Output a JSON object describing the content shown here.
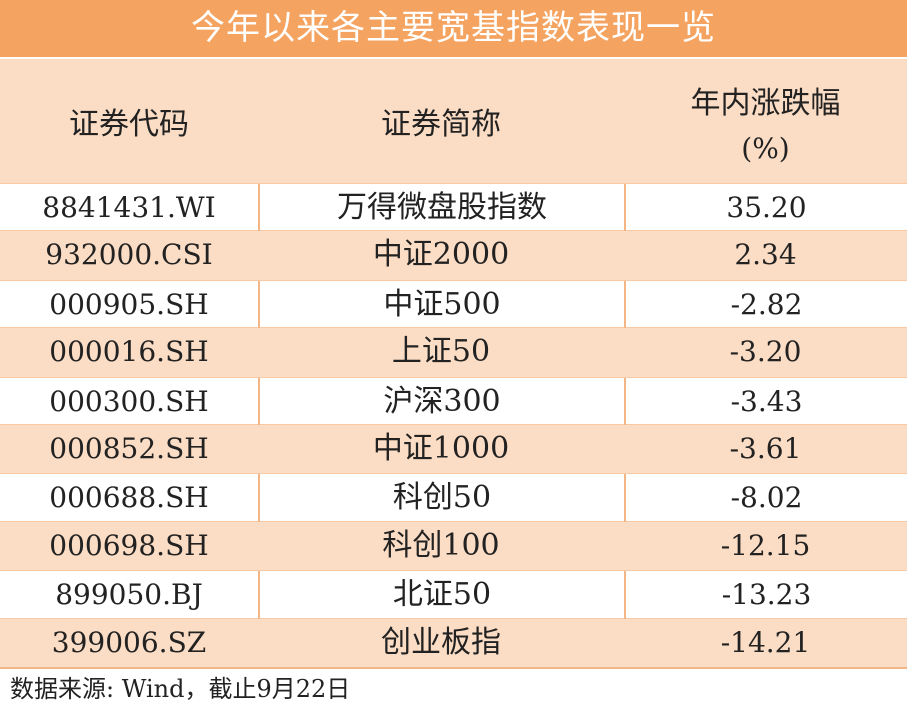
{
  "title": "今年以来各主要宽基指数表现一览",
  "header": {
    "col1": "证券代码",
    "col2": "证券简称",
    "col3": "年内涨跌幅",
    "col3_unit": "(%)"
  },
  "rows": [
    {
      "code": "8841431.WI",
      "name": "万得微盘股指数",
      "change": "35.20"
    },
    {
      "code": "932000.CSI",
      "name": "中证2000",
      "change": "2.34"
    },
    {
      "code": "000905.SH",
      "name": "中证500",
      "change": "-2.82"
    },
    {
      "code": "000016.SH",
      "name": "上证50",
      "change": "-3.20"
    },
    {
      "code": "000300.SH",
      "name": "沪深300",
      "change": "-3.43"
    },
    {
      "code": "000852.SH",
      "name": "中证1000",
      "change": "-3.61"
    },
    {
      "code": "000688.SH",
      "name": "科创50",
      "change": "-8.02"
    },
    {
      "code": "000698.SH",
      "name": "科创100",
      "change": "-12.15"
    },
    {
      "code": "899050.BJ",
      "name": "北证50",
      "change": "-13.23"
    },
    {
      "code": "399006.SZ",
      "name": "创业板指",
      "change": "-14.21"
    }
  ],
  "footer": "数据来源: Wind，截止9月22日",
  "colors": {
    "title_bg": "#f5a360",
    "band_bg": "#fbdcc4"
  }
}
